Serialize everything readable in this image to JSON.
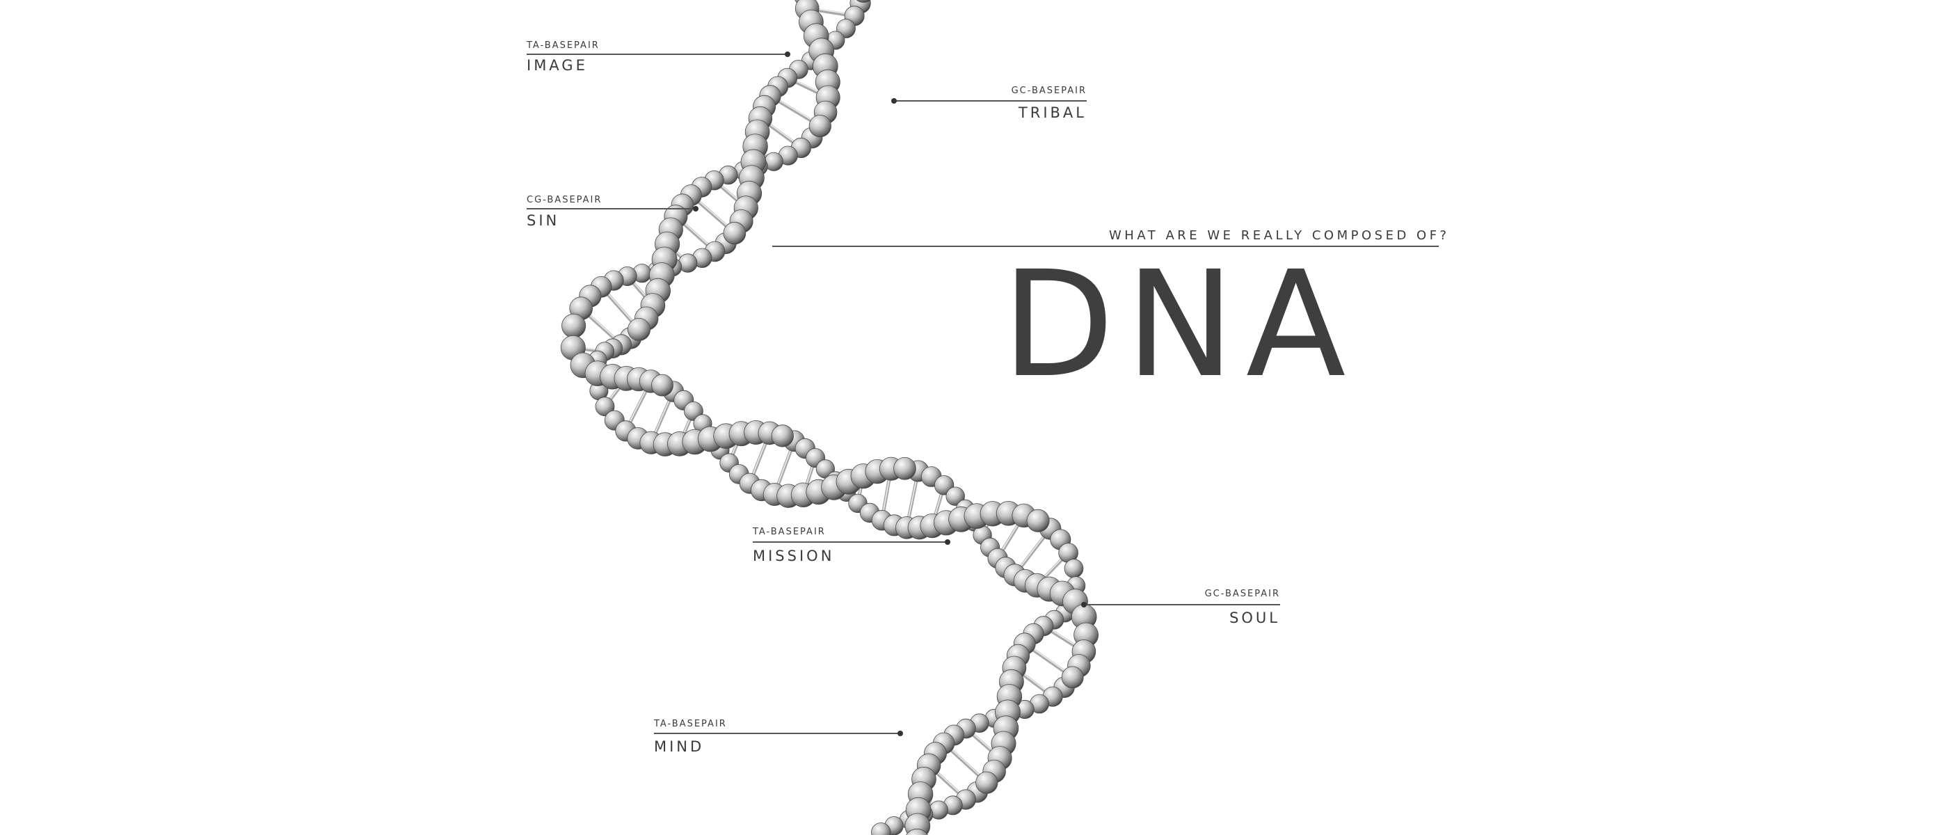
{
  "title": "DNA",
  "subtitle": "WHAT ARE WE REALLY COMPOSED OF?",
  "annotations": [
    {
      "id": "image",
      "basepair": "TA-BASEPAIR",
      "word": "IMAGE"
    },
    {
      "id": "tribal",
      "basepair": "GC-BASEPAIR",
      "word": "TRIBAL"
    },
    {
      "id": "sin",
      "basepair": "CG-BASEPAIR",
      "word": "SIN"
    },
    {
      "id": "mission",
      "basepair": "TA-BASEPAIR",
      "word": "MISSION"
    },
    {
      "id": "soul",
      "basepair": "GC-BASEPAIR",
      "word": "SOUL"
    },
    {
      "id": "mind",
      "basepair": "TA-BASEPAIR",
      "word": "MIND"
    }
  ],
  "colors": {
    "background": "#ffffff",
    "text": "#3a3a3a",
    "line": "#555555",
    "bead_light": "#f4f4f4",
    "bead_mid": "#b5b5b5",
    "bead_dark": "#555555"
  }
}
